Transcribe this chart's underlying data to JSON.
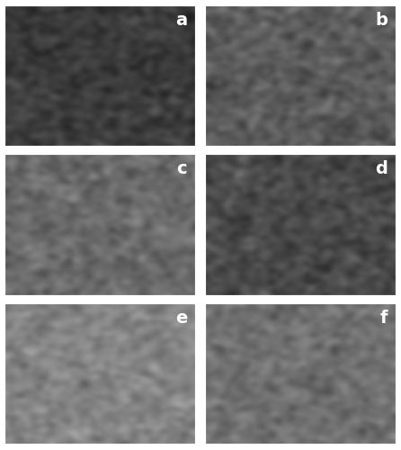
{
  "title": "",
  "nrows": 3,
  "ncols": 2,
  "labels": [
    "a",
    "b",
    "c",
    "d",
    "e",
    "f"
  ],
  "label_color": "white",
  "label_fontsize": 14,
  "label_fontweight": "bold",
  "border_color": "white",
  "border_linewidth": 3,
  "background_color": "#7a7a7a",
  "figsize": [
    4.46,
    5.0
  ],
  "dpi": 100,
  "panel_bg_colors": [
    "#1a1a1a",
    "#3a3a3a",
    "#4a4a4a",
    "#2a2a2a",
    "#6a6a6a",
    "#5a5a5a"
  ],
  "wspace": 0.04,
  "hspace": 0.04
}
